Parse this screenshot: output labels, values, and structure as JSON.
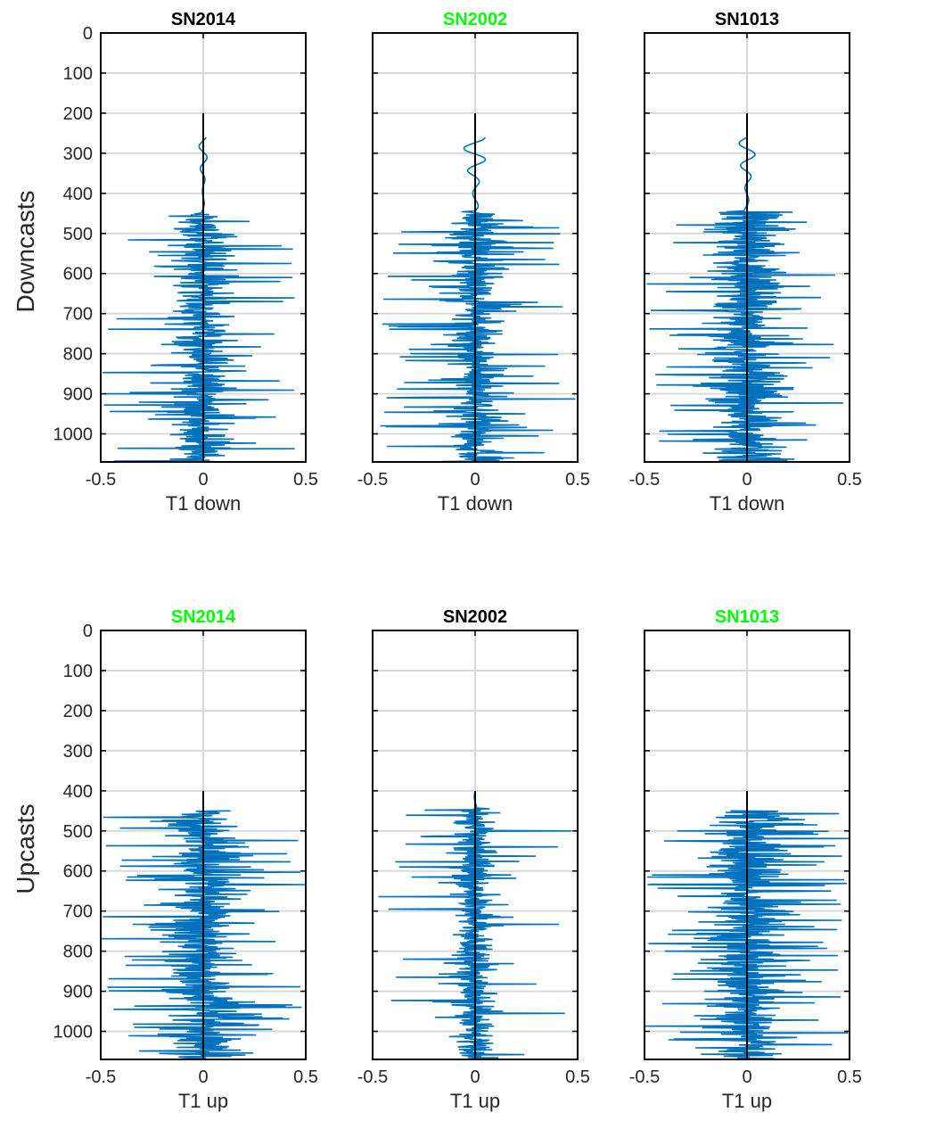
{
  "colors": {
    "trace": "#0072BD",
    "center_line": "#000000",
    "grid": "#d9d9d9",
    "title_default": "#000000",
    "title_highlight": "#00ff00",
    "axes": "#000000"
  },
  "rows": [
    {
      "label": "Downcasts"
    },
    {
      "label": "Upcasts"
    }
  ],
  "chart_data": [
    {
      "type": "line",
      "title": "SN2014",
      "title_color": "#000000",
      "xlabel": "T1 down",
      "ylabel": "Downcasts",
      "xlim": [
        -0.5,
        0.5
      ],
      "ylim": [
        0,
        1070
      ],
      "y_reversed": true,
      "xticks": [
        "-0.5",
        "0",
        "0.5"
      ],
      "yticks": [
        "0",
        "100",
        "200",
        "300",
        "400",
        "500",
        "600",
        "700",
        "800",
        "900",
        "1000"
      ],
      "grid": true,
      "series": [
        {
          "values": []
        }
      ],
      "profile": {
        "start": 260,
        "quiet_end": 450,
        "quiet_amp": 0.02,
        "noise_std": 0.07,
        "spike_rate": 0.08,
        "spike_max": 0.5,
        "seed": 11
      }
    },
    {
      "type": "line",
      "title": "SN2002",
      "title_color": "#00ff00",
      "xlabel": "T1 down",
      "ylabel": "",
      "xlim": [
        -0.5,
        0.5
      ],
      "ylim": [
        0,
        1070
      ],
      "y_reversed": true,
      "xticks": [
        "-0.5",
        "0",
        "0.5"
      ],
      "yticks": [],
      "grid": true,
      "series": [
        {
          "values": []
        }
      ],
      "profile": {
        "start": 260,
        "quiet_end": 445,
        "quiet_amp": 0.055,
        "noise_std": 0.06,
        "spike_rate": 0.11,
        "spike_max": 0.5,
        "seed": 23
      }
    },
    {
      "type": "line",
      "title": "SN1013",
      "title_color": "#000000",
      "xlabel": "T1 down",
      "ylabel": "",
      "xlim": [
        -0.5,
        0.5
      ],
      "ylim": [
        0,
        1070
      ],
      "y_reversed": true,
      "xticks": [
        "-0.5",
        "0",
        "0.5"
      ],
      "yticks": [],
      "grid": true,
      "series": [
        {
          "values": []
        }
      ],
      "profile": {
        "start": 260,
        "quiet_end": 445,
        "quiet_amp": 0.04,
        "noise_std": 0.09,
        "spike_rate": 0.1,
        "spike_max": 0.5,
        "seed": 37
      }
    },
    {
      "type": "line",
      "title": "SN2014",
      "title_color": "#00ff00",
      "xlabel": "T1 up",
      "ylabel": "Upcasts",
      "xlim": [
        -0.5,
        0.5
      ],
      "ylim": [
        0,
        1070
      ],
      "y_reversed": true,
      "xticks": [
        "-0.5",
        "0",
        "0.5"
      ],
      "yticks": [
        "0",
        "100",
        "200",
        "300",
        "400",
        "500",
        "600",
        "700",
        "800",
        "900",
        "1000"
      ],
      "grid": true,
      "series": [
        {
          "values": []
        }
      ],
      "profile": {
        "start": 450,
        "quiet_end": 450,
        "quiet_amp": 0.01,
        "noise_std": 0.08,
        "spike_rate": 0.16,
        "spike_max": 0.5,
        "seed": 41
      }
    },
    {
      "type": "line",
      "title": "SN2002",
      "title_color": "#000000",
      "xlabel": "T1 up",
      "ylabel": "",
      "xlim": [
        -0.5,
        0.5
      ],
      "ylim": [
        0,
        1070
      ],
      "y_reversed": true,
      "xticks": [
        "-0.5",
        "0",
        "0.5"
      ],
      "yticks": [],
      "grid": true,
      "series": [
        {
          "values": []
        }
      ],
      "profile": {
        "start": 405,
        "quiet_end": 445,
        "quiet_amp": 0.02,
        "noise_std": 0.05,
        "spike_rate": 0.06,
        "spike_max": 0.5,
        "seed": 53
      }
    },
    {
      "type": "line",
      "title": "SN1013",
      "title_color": "#00ff00",
      "xlabel": "T1 up",
      "ylabel": "",
      "xlim": [
        -0.5,
        0.5
      ],
      "ylim": [
        0,
        1070
      ],
      "y_reversed": true,
      "xticks": [
        "-0.5",
        "0",
        "0.5"
      ],
      "yticks": [],
      "grid": true,
      "series": [
        {
          "values": []
        }
      ],
      "profile": {
        "start": 450,
        "quiet_end": 450,
        "quiet_amp": 0.01,
        "noise_std": 0.08,
        "spike_rate": 0.16,
        "spike_max": 0.5,
        "seed": 67
      }
    }
  ]
}
